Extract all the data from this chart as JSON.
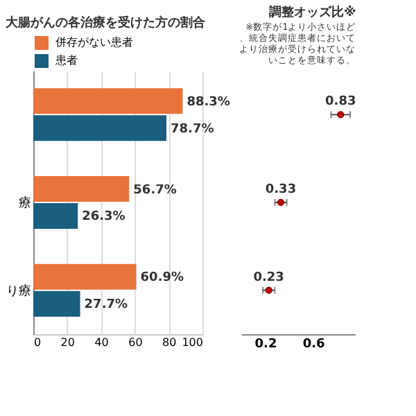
{
  "chart_data": [
    {
      "type": "bar",
      "orientation": "horizontal",
      "title": "大腸がんの各治療を受けた方の割合",
      "categories": [
        null,
        "療",
        "り療"
      ],
      "series": [
        {
          "name": "併存がない患者",
          "color": "#e8743b",
          "values": [
            88.3,
            56.7,
            60.9
          ],
          "value_labels": [
            "88.3%",
            "56.7%",
            "60.9%"
          ]
        },
        {
          "name": "患者",
          "color": "#1a5e80",
          "values": [
            78.7,
            26.3,
            27.7
          ],
          "value_labels": [
            "78.7%",
            "26.3%",
            "27.7%"
          ]
        }
      ],
      "xlim": [
        0,
        100
      ],
      "xticks": [
        0,
        20,
        40,
        60,
        80,
        100
      ],
      "grid": "x",
      "legend": "top left"
    },
    {
      "type": "scatter",
      "orientation": "horizontal",
      "title": "調整オッズ比※",
      "annotations": [
        "※数字が1より小さいほど、統合失調症患者においてより治療が受けられていないことを意味する。"
      ],
      "categories": [
        null,
        null,
        null
      ],
      "series": [
        {
          "color": "#c00000",
          "values": [
            0.83,
            0.33,
            0.23
          ],
          "errors": [
            0.08,
            0.05,
            0.05
          ]
        }
      ],
      "data_labels": true,
      "marker": "circle",
      "xlim": [
        0,
        0.95
      ],
      "xticks": [
        0.2,
        0.6
      ],
      "grid": false
    }
  ]
}
